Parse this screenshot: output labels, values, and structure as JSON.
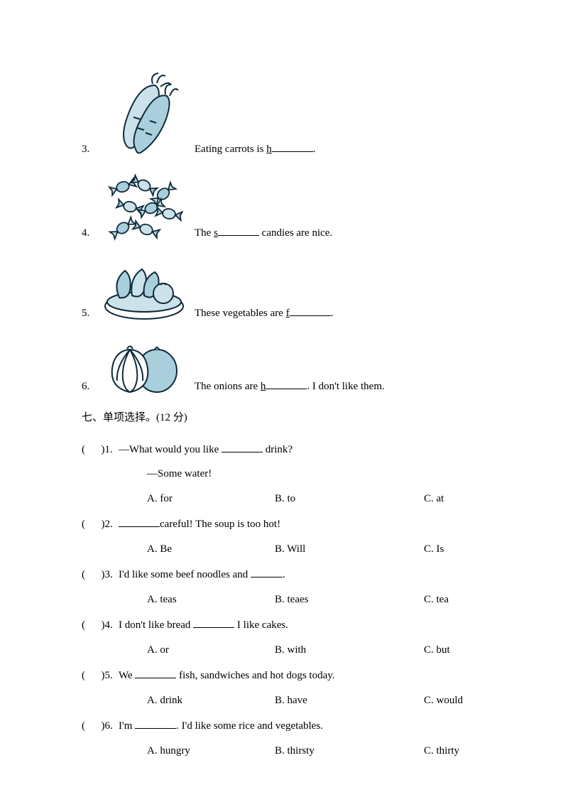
{
  "colors": {
    "ink": "#0e2a3a",
    "fill_light": "#cce2ea",
    "fill_mid": "#a9cfdc",
    "fill_accent": "#8cbfd0",
    "white": "#ffffff"
  },
  "picture_questions": [
    {
      "number": "3.",
      "before_letter": "Eating carrots is ",
      "letter": "h",
      "after_blank": ".",
      "icon": "carrots"
    },
    {
      "number": "4.",
      "before_letter": "The ",
      "letter": "s",
      "after_blank": " candies are nice.",
      "icon": "candies"
    },
    {
      "number": "5.",
      "before_letter": "These vegetables are ",
      "letter": "f",
      "after_blank": ".",
      "icon": "vegetables"
    },
    {
      "number": "6.",
      "before_letter": "The onions are ",
      "letter": "h",
      "after_blank": ". I don't like them.",
      "icon": "onions"
    }
  ],
  "section_heading": "七、单项选择。(12 分)",
  "mc_questions": [
    {
      "paren": "(      )1.",
      "stem_parts": [
        "—What would you like ",
        "blank",
        " drink?"
      ],
      "follow": "—Some water!",
      "choices": {
        "a": "A. for",
        "b": "B. to",
        "c": "C. at"
      }
    },
    {
      "paren": "(      )2.",
      "stem_parts": [
        "",
        "blank",
        "careful! The soup is too hot!"
      ],
      "choices": {
        "a": "A. Be",
        "b": "B. Will",
        "c": "C. Is"
      }
    },
    {
      "paren": "(      )3.",
      "stem_parts": [
        "I'd like some beef noodles and ",
        "blank-short",
        "."
      ],
      "choices": {
        "a": "A. teas",
        "b": "B. teaes",
        "c": "C. tea"
      }
    },
    {
      "paren": "(      )4.",
      "stem_parts": [
        "I don't like bread ",
        "blank",
        " I like cakes."
      ],
      "choices": {
        "a": "A. or",
        "b": "B. with",
        "c": "C. but"
      }
    },
    {
      "paren": "(      )5.",
      "stem_parts": [
        "We ",
        "blank",
        " fish, sandwiches and hot dogs today."
      ],
      "choices": {
        "a": "A. drink",
        "b": "B. have",
        "c": "C. would"
      }
    },
    {
      "paren": "(      )6.",
      "stem_parts": [
        "I'm ",
        "blank",
        ". I'd like some rice and vegetables."
      ],
      "choices": {
        "a": "A. hungry",
        "b": "B. thirsty",
        "c": "C. thirty"
      }
    }
  ]
}
